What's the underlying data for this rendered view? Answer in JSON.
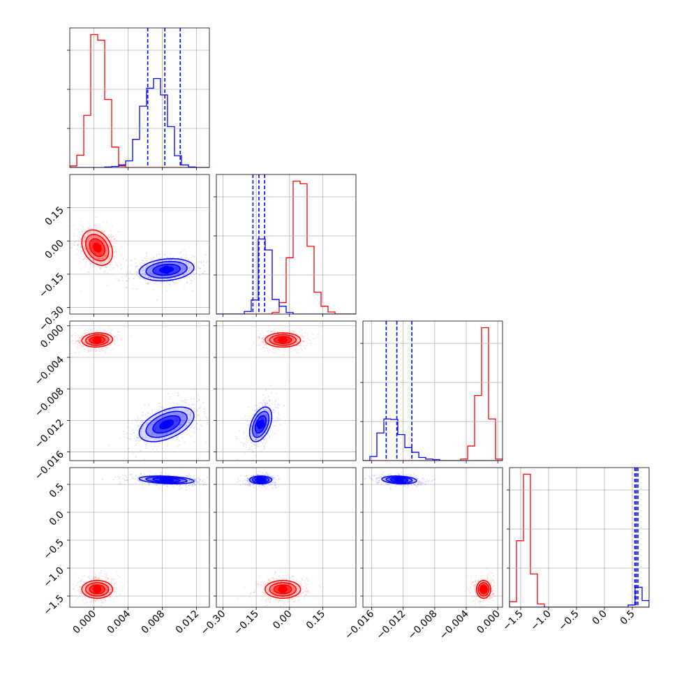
{
  "colors": {
    "red": "#ff0000",
    "blue": "#0000ff",
    "grid": "#b0b0b0"
  },
  "chart_data": {
    "type": "corner",
    "parameters": [
      {
        "range": [
          -0.0028,
          0.0135
        ],
        "ticks": [
          "0.000",
          "0.004",
          "0.008",
          "0.012"
        ],
        "tick_values": [
          0.0,
          0.004,
          0.008,
          0.012
        ]
      },
      {
        "range": [
          -0.33,
          0.3
        ],
        "ticks": [
          "−0.30",
          "−0.15",
          "0.00",
          "0.15"
        ],
        "tick_values": [
          -0.3,
          -0.15,
          0.0,
          0.15
        ]
      },
      {
        "range": [
          -0.0171,
          0.0006
        ],
        "ticks": [
          "−0.016",
          "−0.012",
          "−0.008",
          "−0.004",
          "0.000"
        ],
        "tick_values": [
          -0.016,
          -0.012,
          -0.008,
          -0.004,
          0.0
        ]
      },
      {
        "range": [
          -1.7,
          0.8
        ],
        "ticks": [
          "−1.5",
          "−1.0",
          "−0.5",
          "0.0",
          "0.5"
        ],
        "tick_values": [
          -1.5,
          -1.0,
          -0.5,
          0.0,
          0.5
        ]
      }
    ],
    "series": [
      {
        "color": "red",
        "mean": [
          0.0004,
          -0.03,
          -0.0018,
          -1.38
        ],
        "std": [
          0.0009,
          0.04,
          0.00045,
          0.08
        ],
        "corr": [
          [
            1,
            -0.3,
            0.1,
            0.0
          ],
          [
            -0.3,
            1,
            0.0,
            0.0
          ],
          [
            0.1,
            0.0,
            1,
            0.0
          ],
          [
            0.0,
            0.0,
            0.0,
            1
          ]
        ],
        "hist": [
          [
            0.3,
            2.4,
            10.2,
            26.0,
            24.9,
            13.3,
            4.0,
            0.3,
            0.0,
            0.0,
            0.0,
            0.0,
            0.0,
            0.0,
            0.0,
            0.0,
            0.0,
            0.0,
            0.0,
            0.0
          ],
          [
            0,
            0,
            0,
            0,
            0,
            0,
            0,
            0,
            0.3,
            2.2,
            10.8,
            25.5,
            25.0,
            13.0,
            4.2,
            1.5,
            0.4,
            0,
            0,
            0
          ],
          [
            0,
            0,
            0,
            0,
            0,
            0,
            0,
            0,
            0,
            0,
            0,
            0,
            0,
            0,
            0.3,
            2.8,
            12.5,
            25.5,
            8.0,
            0.3
          ],
          [
            0.5,
            6.0,
            12.0,
            3.0,
            0.3,
            0,
            0,
            0,
            0,
            0,
            0,
            0,
            0,
            0,
            0,
            0,
            0,
            0,
            0,
            0
          ]
        ]
      },
      {
        "color": "blue",
        "mean": [
          0.0085,
          -0.13,
          -0.0125,
          0.58
        ],
        "std": [
          0.0016,
          0.025,
          0.0011,
          0.035
        ],
        "corr": [
          [
            1,
            0.2,
            0.5,
            -0.3
          ],
          [
            0.2,
            1,
            0.45,
            0.0
          ],
          [
            0.5,
            0.45,
            1,
            -0.2
          ],
          [
            -0.3,
            0.0,
            -0.2,
            1
          ]
        ],
        "hist": [
          [
            0,
            0,
            0,
            0,
            0,
            0.1,
            0.2,
            0.5,
            1.3,
            5.5,
            12.0,
            15.5,
            17.4,
            14.2,
            8.0,
            2.3,
            0.5,
            0.1,
            0,
            0
          ],
          [
            0,
            0,
            0,
            0,
            0.5,
            2.7,
            14.4,
            12.3,
            2.8,
            1.5,
            0.3,
            0,
            0,
            0,
            0,
            0,
            0,
            0,
            0,
            0
          ],
          [
            0,
            0.8,
            5.3,
            8.0,
            7.9,
            5.0,
            2.5,
            1.6,
            0.6,
            0.3,
            0.2,
            0,
            0,
            0,
            0,
            0,
            0,
            0,
            0,
            0
          ],
          [
            0,
            0,
            0,
            0,
            0,
            0,
            0,
            0,
            0,
            0,
            0,
            0,
            0,
            0,
            0,
            0,
            0,
            0.2,
            1.8,
            0.6
          ]
        ],
        "quantiles": [
          [
            0.0063,
            0.0083,
            0.0101
          ],
          [
            -0.165,
            -0.138,
            -0.112
          ],
          [
            -0.01415,
            -0.0128,
            -0.0109
          ],
          [
            0.545,
            0.57,
            0.6
          ]
        ]
      }
    ]
  }
}
